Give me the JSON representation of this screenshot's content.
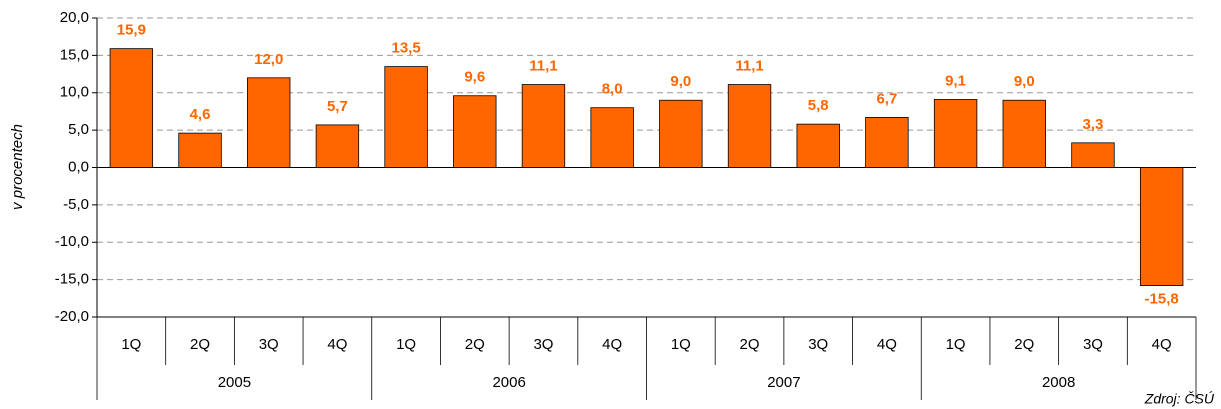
{
  "chart_data": {
    "type": "bar",
    "y_axis_label": "v procentech",
    "source": "Zdroj: ČSÚ",
    "categories": [
      "1Q",
      "2Q",
      "3Q",
      "4Q",
      "1Q",
      "2Q",
      "3Q",
      "4Q",
      "1Q",
      "2Q",
      "3Q",
      "4Q",
      "1Q",
      "2Q",
      "3Q",
      "4Q"
    ],
    "category_groups": [
      "2005",
      "2006",
      "2007",
      "2008"
    ],
    "values": [
      15.9,
      4.6,
      12.0,
      5.7,
      13.5,
      9.6,
      11.1,
      8.0,
      9.0,
      11.1,
      5.8,
      6.7,
      9.1,
      9.0,
      3.3,
      -15.8
    ],
    "value_labels": [
      "15,9",
      "4,6",
      "12,0",
      "5,7",
      "13,5",
      "9,6",
      "11,1",
      "8,0",
      "9,0",
      "11,1",
      "5,8",
      "6,7",
      "9,1",
      "9,0",
      "3,3",
      "-15,8"
    ],
    "color": "#FF6600",
    "ylim": [
      -20,
      20
    ],
    "yticks": [
      {
        "value": -20,
        "label": "-20,0"
      },
      {
        "value": -15,
        "label": "-15,0"
      },
      {
        "value": -10,
        "label": "-10,0"
      },
      {
        "value": -5,
        "label": "-5,0"
      },
      {
        "value": 0,
        "label": "0,0"
      },
      {
        "value": 5,
        "label": "5,0"
      },
      {
        "value": 10,
        "label": "10,0"
      },
      {
        "value": 15,
        "label": "15,0"
      },
      {
        "value": 20,
        "label": "20,0"
      }
    ],
    "grid": true
  }
}
